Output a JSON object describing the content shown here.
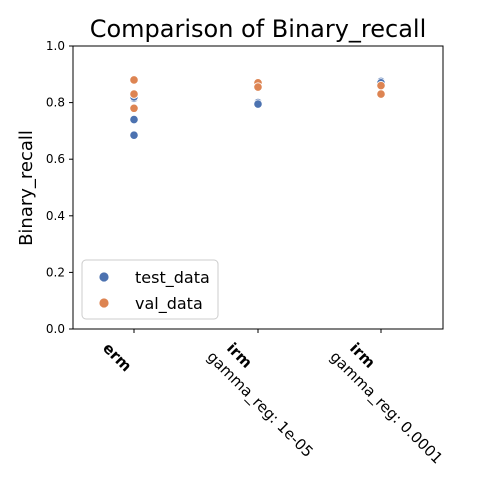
{
  "chart_data": {
    "type": "scatter",
    "title": "Comparison of Binary_recall",
    "xlabel": "",
    "ylabel": "Binary_recall",
    "ylim": [
      0.0,
      1.0
    ],
    "yticks": [
      "0.0",
      "0.2",
      "0.4",
      "0.6",
      "0.8",
      "1.0"
    ],
    "grid": false,
    "legend_position": "lower-left",
    "categories": [
      {
        "bold": "erm",
        "sub": ""
      },
      {
        "bold": "irm",
        "sub": "gamma_reg: 1e-05"
      },
      {
        "bold": "irm",
        "sub": "gamma_reg: 0.0001"
      }
    ],
    "series": [
      {
        "name": "test_data",
        "color": "#4c72b0",
        "points": [
          {
            "category": 0,
            "value": 0.685
          },
          {
            "category": 0,
            "value": 0.74
          },
          {
            "category": 0,
            "value": 0.815
          },
          {
            "category": 0,
            "value": 0.82
          },
          {
            "category": 0,
            "value": 0.83
          },
          {
            "category": 1,
            "value": 0.8
          },
          {
            "category": 1,
            "value": 0.795
          },
          {
            "category": 2,
            "value": 0.875
          },
          {
            "category": 2,
            "value": 0.87
          }
        ]
      },
      {
        "name": "val_data",
        "color": "#dd8452",
        "points": [
          {
            "category": 0,
            "value": 0.88
          },
          {
            "category": 0,
            "value": 0.83
          },
          {
            "category": 0,
            "value": 0.78
          },
          {
            "category": 1,
            "value": 0.87
          },
          {
            "category": 1,
            "value": 0.855
          },
          {
            "category": 2,
            "value": 0.86
          },
          {
            "category": 2,
            "value": 0.83
          }
        ]
      }
    ]
  }
}
